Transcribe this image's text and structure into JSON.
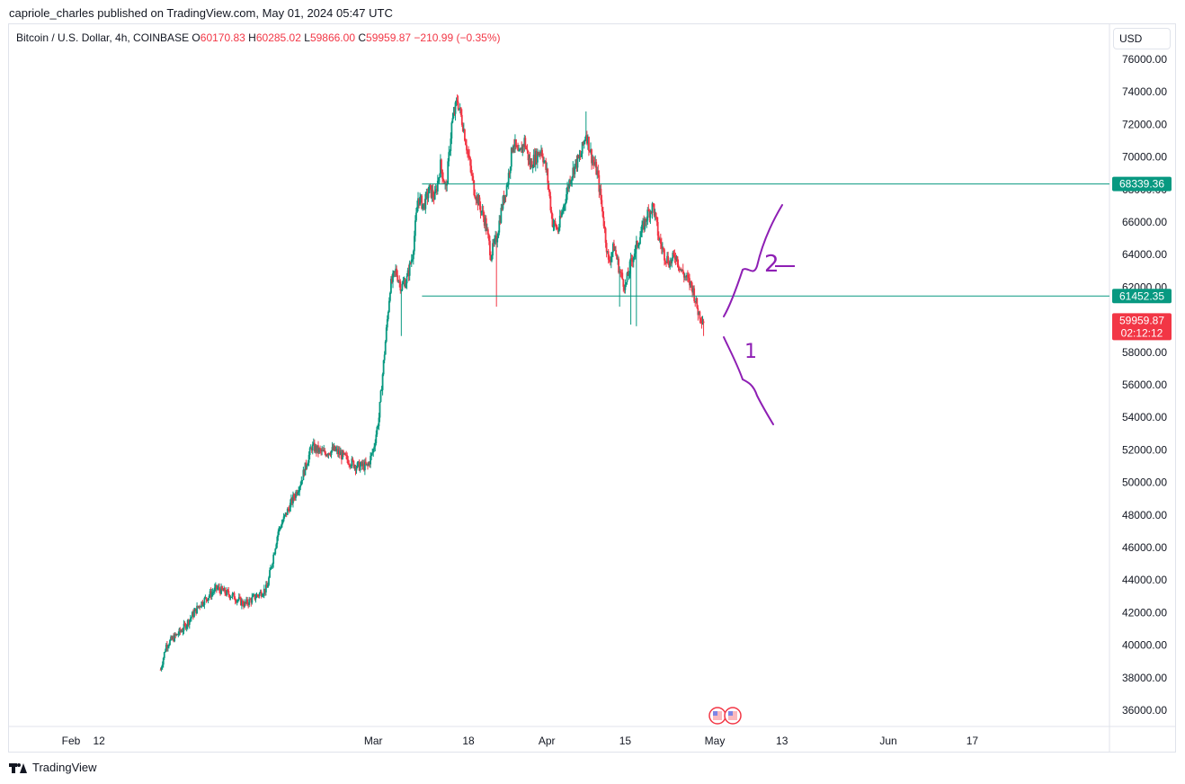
{
  "header": {
    "text": "capriole_charles published on TradingView.com, May 01, 2024 05:47 UTC"
  },
  "legend": {
    "symbol": "Bitcoin / U.S. Dollar, 4h, COINBASE",
    "o_label": "O",
    "o_value": "60170.83",
    "h_label": "H",
    "h_value": "60285.02",
    "l_label": "L",
    "l_value": "59866.00",
    "c_label": "C",
    "c_value": "59959.87",
    "change": "−210.99 (−0.35%)"
  },
  "unit": "USD",
  "footer": {
    "brand": "TradingView"
  },
  "colors": {
    "up": "#089981",
    "down": "#f23645",
    "level_line": "#089981",
    "drawing": "#8e1fb4",
    "price_badge": "#f23645"
  },
  "chart_data": {
    "type": "candlestick",
    "timeframe": "4h",
    "ylim": [
      35000,
      77000
    ],
    "y_ticks": [
      "76000.00",
      "74000.00",
      "72000.00",
      "70000.00",
      "68000.00",
      "66000.00",
      "64000.00",
      "62000.00",
      "60000.00",
      "58000.00",
      "56000.00",
      "54000.00",
      "52000.00",
      "50000.00",
      "48000.00",
      "46000.00",
      "44000.00",
      "42000.00",
      "40000.00",
      "38000.00",
      "36000.00"
    ],
    "x_ticks": [
      {
        "label": "Feb",
        "day": 7
      },
      {
        "label": "12",
        "day": 12
      },
      {
        "label": "Mar",
        "day": 61
      },
      {
        "label": "18",
        "day": 78
      },
      {
        "label": "Apr",
        "day": 92
      },
      {
        "label": "15",
        "day": 106
      },
      {
        "label": "May",
        "day": 122
      },
      {
        "label": "13",
        "day": 134
      },
      {
        "label": "Jun",
        "day": 153
      },
      {
        "label": "17",
        "day": 168
      }
    ],
    "x_day_range": [
      23,
      175
    ],
    "price_anchors": [
      [
        23,
        38500
      ],
      [
        24,
        40000
      ],
      [
        27,
        41000
      ],
      [
        30,
        42500
      ],
      [
        33,
        43500
      ],
      [
        36,
        43000
      ],
      [
        38,
        42500
      ],
      [
        40,
        43000
      ],
      [
        42,
        43500
      ],
      [
        44,
        47000
      ],
      [
        46,
        48500
      ],
      [
        48,
        50000
      ],
      [
        50,
        52200
      ],
      [
        52,
        51800
      ],
      [
        54,
        52000
      ],
      [
        56,
        51500
      ],
      [
        58,
        51000
      ],
      [
        60,
        51000
      ],
      [
        61,
        52000
      ],
      [
        62,
        54000
      ],
      [
        63,
        58000
      ],
      [
        64,
        62000
      ],
      [
        65,
        63000
      ],
      [
        66,
        62000
      ],
      [
        67,
        62500
      ],
      [
        68,
        64000
      ],
      [
        69,
        67500
      ],
      [
        70,
        67000
      ],
      [
        71,
        68000
      ],
      [
        72,
        67500
      ],
      [
        73,
        69500
      ],
      [
        74,
        68000
      ],
      [
        75,
        72000
      ],
      [
        76,
        73500
      ],
      [
        77,
        72000
      ],
      [
        78,
        70000
      ],
      [
        79,
        68000
      ],
      [
        80,
        67000
      ],
      [
        81,
        66000
      ],
      [
        82,
        64000
      ],
      [
        83,
        65000
      ],
      [
        84,
        67000
      ],
      [
        85,
        68500
      ],
      [
        86,
        71000
      ],
      [
        87,
        70000
      ],
      [
        88,
        71000
      ],
      [
        89,
        69500
      ],
      [
        90,
        70000
      ],
      [
        91,
        70500
      ],
      [
        92,
        69000
      ],
      [
        93,
        66000
      ],
      [
        94,
        65500
      ],
      [
        95,
        67000
      ],
      [
        96,
        68500
      ],
      [
        97,
        69500
      ],
      [
        98,
        70000
      ],
      [
        99,
        71500
      ],
      [
        100,
        70000
      ],
      [
        101,
        69000
      ],
      [
        102,
        66500
      ],
      [
        103,
        63500
      ],
      [
        104,
        64500
      ],
      [
        105,
        63000
      ],
      [
        106,
        62000
      ],
      [
        107,
        63500
      ],
      [
        108,
        64500
      ],
      [
        109,
        65500
      ],
      [
        110,
        66500
      ],
      [
        111,
        67000
      ],
      [
        112,
        65000
      ],
      [
        113,
        64000
      ],
      [
        114,
        63500
      ],
      [
        115,
        64000
      ],
      [
        116,
        63000
      ],
      [
        117,
        62500
      ],
      [
        118,
        62000
      ],
      [
        119,
        60500
      ],
      [
        120,
        59960
      ]
    ],
    "wicks_extreme": [
      {
        "day": 66,
        "low": 59000
      },
      {
        "day": 76,
        "high": 73750
      },
      {
        "day": 83,
        "low": 60800
      },
      {
        "day": 99,
        "high": 72800
      },
      {
        "day": 105,
        "low": 60800
      },
      {
        "day": 107,
        "low": 59700
      },
      {
        "day": 108,
        "low": 59600
      },
      {
        "day": 120,
        "low": 59000
      }
    ],
    "levels": [
      {
        "value": 68339.36,
        "label": "68339.36"
      },
      {
        "value": 61452.35,
        "label": "61452.35"
      }
    ],
    "last_price": {
      "value": 59959.87,
      "label": "59959.87",
      "countdown": "02:12:12"
    },
    "annotations": [
      {
        "label": "2",
        "kind": "handwritten",
        "direction": "up"
      },
      {
        "label": "1",
        "kind": "handwritten",
        "direction": "down"
      }
    ]
  }
}
